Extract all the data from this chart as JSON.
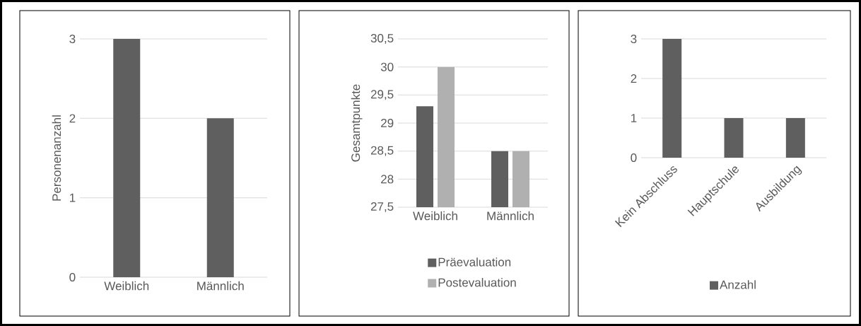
{
  "chart_data": [
    {
      "type": "bar",
      "ylabel": "Personenanzahl",
      "categories": [
        "Weiblich",
        "Männlich"
      ],
      "series": [
        {
          "color": "#5f5f5f",
          "values": [
            3,
            2
          ]
        }
      ],
      "ylim": [
        0,
        3
      ],
      "yticks": [
        0,
        1,
        2,
        3
      ],
      "grid": "y",
      "legend": false
    },
    {
      "type": "bar",
      "ylabel": "Gesamtpunkte",
      "categories": [
        "Weiblich",
        "Männlich"
      ],
      "series": [
        {
          "name": "Präevaluation",
          "color": "#5f5f5f",
          "values": [
            29.3,
            28.5
          ]
        },
        {
          "name": "Postevaluation",
          "color": "#b0b0b0",
          "values": [
            30,
            28.5
          ]
        }
      ],
      "ylim": [
        27.5,
        30.5
      ],
      "yticks": [
        {
          "value": 27.5,
          "label": "27,5"
        },
        28,
        {
          "value": 28.5,
          "label": "28,5"
        },
        29,
        {
          "value": 29.5,
          "label": "29,5"
        },
        30,
        {
          "value": 30.5,
          "label": "30,5"
        }
      ],
      "grid": "y",
      "legend": "bottom"
    },
    {
      "type": "bar",
      "categories": [
        "Kein Abschluss",
        "Hauptschule",
        "Ausbildung"
      ],
      "series": [
        {
          "name": "Anzahl",
          "color": "#5f5f5f",
          "values": [
            3,
            1,
            1
          ]
        }
      ],
      "ylim": [
        0,
        3
      ],
      "yticks": [
        0,
        1,
        2,
        3
      ],
      "grid": "y",
      "legend": "bottom"
    }
  ]
}
